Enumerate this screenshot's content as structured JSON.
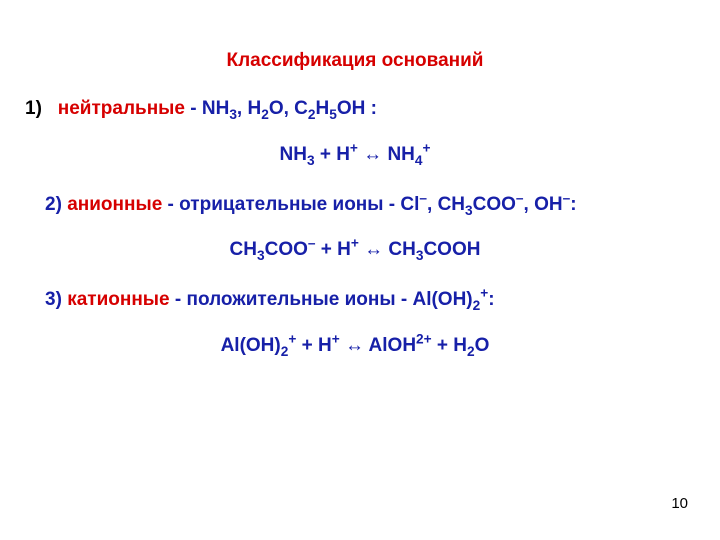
{
  "colors": {
    "red": "#d60000",
    "blue": "#1720a8",
    "black": "#000000"
  },
  "title": "Классификация оснований",
  "item1": {
    "num": "1)",
    "label": "нейтральные",
    "tail": " - NH",
    "f1": {
      "sub3": "3",
      "comma": ", H",
      "sub2": "2",
      "o": "O, C",
      "sub2b": "2",
      "h5": "H",
      "sub5": "5",
      "oh": "OH :"
    }
  },
  "eq1": {
    "p1": "NH",
    "s3": "3",
    "p2": " + H",
    "sup1": "+",
    "arr": " ↔ NH",
    "s4": "4",
    "sup2": "+"
  },
  "item2": {
    "num": "2) ",
    "label": "анионные",
    "tail1": " - отрицательные ионы - Cl",
    "supm1": "–",
    "tail2": ", CH",
    "s3": "3",
    "tail3": "COO",
    "supm2": "–",
    "tail4": ", OH",
    "supm3": "–",
    "tail5": ":"
  },
  "eq2": {
    "p1": "CH",
    "s3a": "3",
    "p2": "COO",
    "supm": "–",
    "p3": " + H",
    "supp": "+",
    "arr": " ↔ CH",
    "s3b": "3",
    "p4": "COOH"
  },
  "item3": {
    "num": "3) ",
    "label": "катионные",
    "tail1": " - положительные ионы - Al(OH)",
    "s2": "2",
    "supp": "+",
    "tail2": ":"
  },
  "eq3": {
    "p1": "Al(OH)",
    "s2": "2",
    "sup1": "+",
    "p2": " + H",
    "sup2": "+",
    "arr": " ↔ AlOH",
    "sup3": "2+",
    "p3": " + H",
    "s2b": "2",
    "p4": "O"
  },
  "page": "10"
}
